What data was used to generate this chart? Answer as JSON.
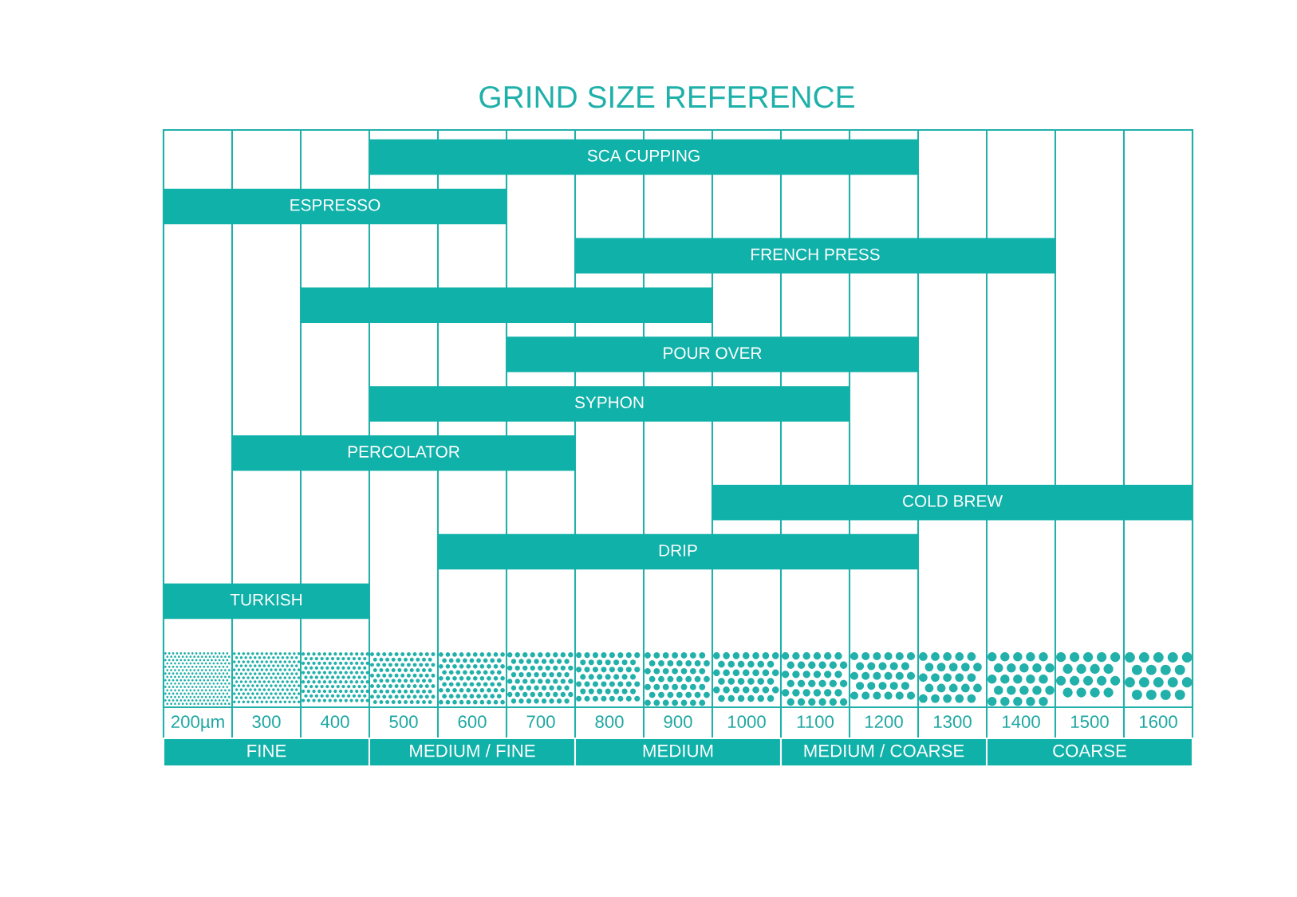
{
  "chart_data": {
    "type": "bar",
    "orientation": "horizontal",
    "title": "GRIND SIZE REFERENCE",
    "categories": [
      "SCA CUPPING",
      "ESPRESSO",
      "FRENCH PRESS",
      null,
      "POUR OVER",
      "SYPHON",
      "PERCOLATOR",
      "COLD BREW",
      "DRIP",
      "TURKISH"
    ],
    "base": [
      450,
      150,
      750,
      350,
      650,
      450,
      250,
      950,
      550,
      150
    ],
    "values": [
      800,
      500,
      700,
      600,
      600,
      700,
      500,
      700,
      700,
      300
    ],
    "color": "#10b1a9",
    "xlim": [
      150,
      1650
    ],
    "xticks": [
      {
        "value": 150,
        "label": null
      },
      {
        "value": 200,
        "label": "200µm"
      },
      {
        "value": 250,
        "label": null
      },
      300,
      {
        "value": 350,
        "label": null
      },
      400,
      {
        "value": 450,
        "label": null
      },
      500,
      {
        "value": 550,
        "label": null
      },
      600,
      {
        "value": 650,
        "label": null
      },
      700,
      {
        "value": 750,
        "label": null
      },
      800,
      {
        "value": 850,
        "label": null
      },
      900,
      {
        "value": 950,
        "label": null
      },
      1000,
      {
        "value": 1050,
        "label": null
      },
      1100,
      {
        "value": 1150,
        "label": null
      },
      1200,
      {
        "value": 1250,
        "label": null
      },
      1300,
      {
        "value": 1350,
        "label": null
      },
      1400,
      {
        "value": 1450,
        "label": null
      },
      1500,
      {
        "value": 1550,
        "label": null
      },
      1600,
      {
        "value": 1650,
        "label": null
      }
    ],
    "grid": "x",
    "tick_labels": "x",
    "annotations": [
      "FINE",
      "MEDIUM / FINE",
      "MEDIUM",
      "MEDIUM / COARSE",
      "COARSE"
    ]
  }
}
